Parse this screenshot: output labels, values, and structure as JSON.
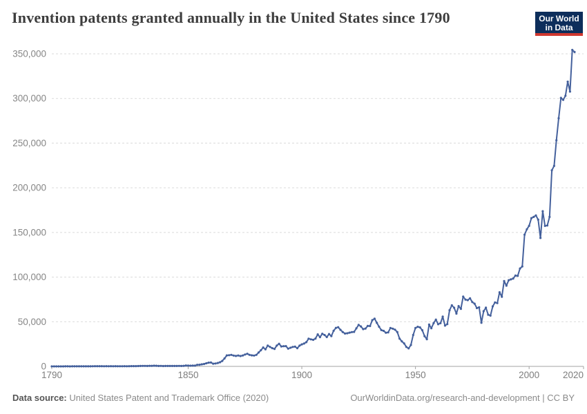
{
  "header": {
    "title": "Invention patents granted annually in the United States since 1790",
    "logo": {
      "line1": "Our World",
      "line2": "in Data"
    }
  },
  "footer": {
    "source_label": "Data source:",
    "source_text": " United States Patent and Trademark Office (2020)",
    "link_text": "OurWorldinData.org/research-and-development",
    "separator": " | ",
    "license": "CC BY"
  },
  "colors": {
    "line": "#44609c",
    "logo_navy": "#0d2e5b",
    "logo_red": "#d0382f",
    "grid": "#dadada",
    "axis": "#a3a3a3",
    "title_text": "#3d3d3d",
    "axis_text": "#868686",
    "footer_text": "#8a8a8a"
  },
  "chart_data": {
    "type": "line",
    "title": "Invention patents granted annually in the United States since 1790",
    "xlabel": "",
    "ylabel": "",
    "legend": "none",
    "grid": "horizontal-dashed",
    "marker": "point",
    "xlim": [
      1790,
      2020
    ],
    "ylim": [
      0,
      350000
    ],
    "x_ticks": [
      1790,
      1850,
      1900,
      1950,
      2000,
      2020
    ],
    "y_ticks": [
      0,
      50000,
      100000,
      150000,
      200000,
      250000,
      300000,
      350000
    ],
    "series": [
      {
        "name": "patents_granted",
        "years": {
          "start": 1790,
          "end": 2020,
          "step": 1
        },
        "values": [
          3,
          33,
          11,
          20,
          22,
          12,
          44,
          51,
          28,
          44,
          41,
          44,
          65,
          97,
          84,
          57,
          63,
          99,
          158,
          203,
          223,
          215,
          238,
          181,
          210,
          173,
          206,
          174,
          222,
          156,
          155,
          168,
          200,
          173,
          228,
          304,
          323,
          331,
          368,
          447,
          544,
          573,
          474,
          586,
          630,
          752,
          702,
          426,
          514,
          404,
          458,
          490,
          488,
          493,
          478,
          473,
          566,
          495,
          583,
          984,
          883,
          752,
          885,
          844,
          1755,
          1881,
          2302,
          2674,
          3455,
          4160,
          4357,
          3020,
          3214,
          3773,
          4630,
          6088,
          8863,
          12277,
          12526,
          12931,
          12137,
          11659,
          12180,
          11616,
          12230,
          13291,
          14169,
          12920,
          12345,
          12165,
          12902,
          15500,
          18091,
          21162,
          19118,
          23285,
          21767,
          20403,
          19551,
          23324,
          25313,
          22312,
          22647,
          22750,
          19855,
          20856,
          21822,
          22067,
          20377,
          23278,
          24644,
          25546,
          27119,
          31029,
          30258,
          29775,
          31170,
          35859,
          32735,
          36561,
          35141,
          32856,
          36198,
          33917,
          39892,
          43118,
          43892,
          40935,
          38452,
          36797,
          37060,
          37798,
          38369,
          38616,
          42574,
          46432,
          44733,
          41717,
          42357,
          45267,
          45226,
          51756,
          53458,
          48774,
          44420,
          40618,
          39782,
          37683,
          38061,
          43073,
          42238,
          41109,
          38449,
          31054,
          28053,
          25695,
          21803,
          20139,
          23963,
          35131,
          43040,
          44326,
          43616,
          40468,
          33809,
          30432,
          46817,
          42744,
          48330,
          52408,
          47170,
          48368,
          55691,
          45679,
          47376,
          62857,
          68406,
          65652,
          59104,
          67559,
          64429,
          78185,
          74810,
          74143,
          76278,
          71994,
          70226,
          65269,
          66102,
          48854,
          61819,
          65771,
          57888,
          56860,
          67200,
          71661,
          70860,
          82952,
          77924,
          95537,
          90364,
          96511,
          97444,
          98342,
          101676,
          101419,
          109645,
          111984,
          147517,
          153485,
          157494,
          166035,
          167331,
          169023,
          164290,
          143806,
          173772,
          157282,
          157772,
          167349,
          219614,
          224505,
          253155,
          277835,
          300678,
          298407,
          303049,
          318829,
          307759,
          354430,
          351993
        ]
      }
    ]
  }
}
